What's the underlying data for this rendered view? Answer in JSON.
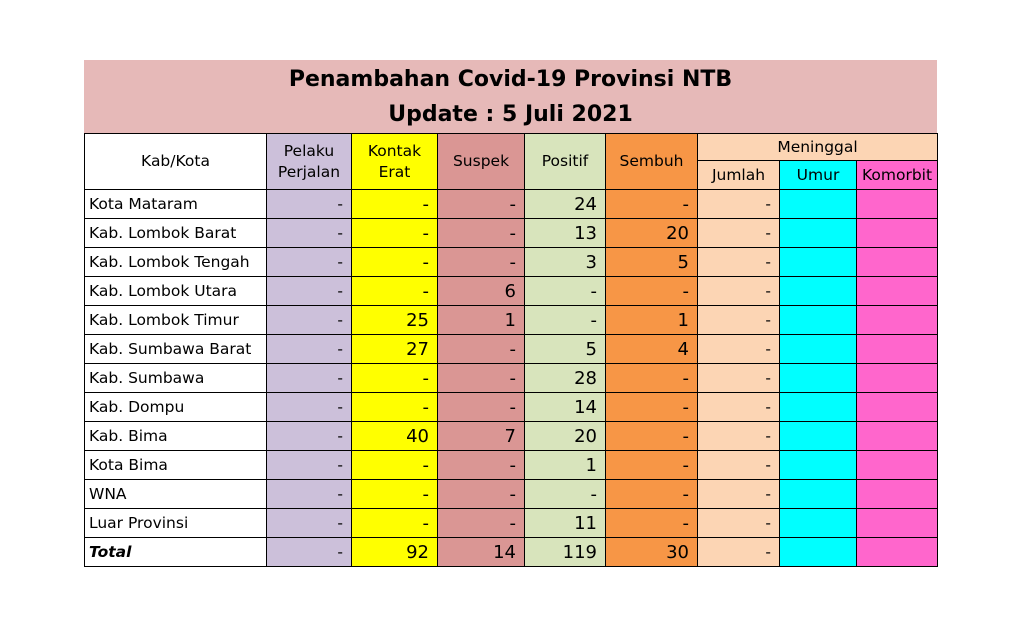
{
  "title": {
    "line1": "Penambahan Covid-19 Provinsi NTB",
    "line2": "Update : 5 Juli  2021"
  },
  "headers": {
    "kab_kota": "Kab/Kota",
    "pelaku_perjalan_1": "Pelaku",
    "pelaku_perjalan_2": "Perjalan",
    "kontak_erat_1": "Kontak",
    "kontak_erat_2": "Erat",
    "suspek": "Suspek",
    "positif": "Positif",
    "sembuh": "Sembuh",
    "meninggal": "Meninggal",
    "jumlah": "Jumlah",
    "umur": "Umur",
    "komorbit": "Komorbit"
  },
  "rows": [
    {
      "name": "Kota Mataram",
      "pelaku": "-",
      "kontak": "-",
      "suspek": "-",
      "positif": "24",
      "sembuh": "-",
      "jumlah": "-",
      "umur": "",
      "komorbit": ""
    },
    {
      "name": "Kab. Lombok Barat",
      "pelaku": "-",
      "kontak": "-",
      "suspek": "-",
      "positif": "13",
      "sembuh": "20",
      "jumlah": "-",
      "umur": "",
      "komorbit": ""
    },
    {
      "name": "Kab. Lombok Tengah",
      "pelaku": "-",
      "kontak": "-",
      "suspek": "-",
      "positif": "3",
      "sembuh": "5",
      "jumlah": "-",
      "umur": "",
      "komorbit": ""
    },
    {
      "name": "Kab. Lombok  Utara",
      "pelaku": "-",
      "kontak": "-",
      "suspek": "6",
      "positif": "-",
      "sembuh": "-",
      "jumlah": "-",
      "umur": "",
      "komorbit": ""
    },
    {
      "name": "Kab. Lombok Timur",
      "pelaku": "-",
      "kontak": "25",
      "suspek": "1",
      "positif": "-",
      "sembuh": "1",
      "jumlah": "-",
      "umur": "",
      "komorbit": ""
    },
    {
      "name": "Kab. Sumbawa Barat",
      "pelaku": "-",
      "kontak": "27",
      "suspek": "-",
      "positif": "5",
      "sembuh": "4",
      "jumlah": "-",
      "umur": "",
      "komorbit": ""
    },
    {
      "name": "Kab. Sumbawa",
      "pelaku": "-",
      "kontak": "-",
      "suspek": "-",
      "positif": "28",
      "sembuh": "-",
      "jumlah": "-",
      "umur": "",
      "komorbit": ""
    },
    {
      "name": "Kab. Dompu",
      "pelaku": "-",
      "kontak": "-",
      "suspek": "-",
      "positif": "14",
      "sembuh": "-",
      "jumlah": "-",
      "umur": "",
      "komorbit": ""
    },
    {
      "name": "Kab. Bima",
      "pelaku": "-",
      "kontak": "40",
      "suspek": "7",
      "positif": "20",
      "sembuh": "-",
      "jumlah": "-",
      "umur": "",
      "komorbit": ""
    },
    {
      "name": "Kota Bima",
      "pelaku": "-",
      "kontak": "-",
      "suspek": "-",
      "positif": "1",
      "sembuh": "-",
      "jumlah": "-",
      "umur": "",
      "komorbit": ""
    },
    {
      "name": "WNA",
      "pelaku": "-",
      "kontak": "-",
      "suspek": "-",
      "positif": "-",
      "sembuh": "-",
      "jumlah": "-",
      "umur": "",
      "komorbit": ""
    },
    {
      "name": "Luar Provinsi",
      "pelaku": "-",
      "kontak": "-",
      "suspek": "-",
      "positif": "11",
      "sembuh": "-",
      "jumlah": "-",
      "umur": "",
      "komorbit": ""
    }
  ],
  "total": {
    "name": "Total",
    "pelaku": "-",
    "kontak": "92",
    "suspek": "14",
    "positif": "119",
    "sembuh": "30",
    "jumlah": "-",
    "umur": "",
    "komorbit": ""
  },
  "colors": {
    "title_bg": "#e6b9b8",
    "pelaku": "#ccc0da",
    "kontak": "#ffff00",
    "suspek": "#da9694",
    "positif": "#d8e4bc",
    "sembuh": "#f79646",
    "meninggal": "#fcd5b4",
    "umur": "#00ffff",
    "komorbit": "#ff66cc"
  }
}
